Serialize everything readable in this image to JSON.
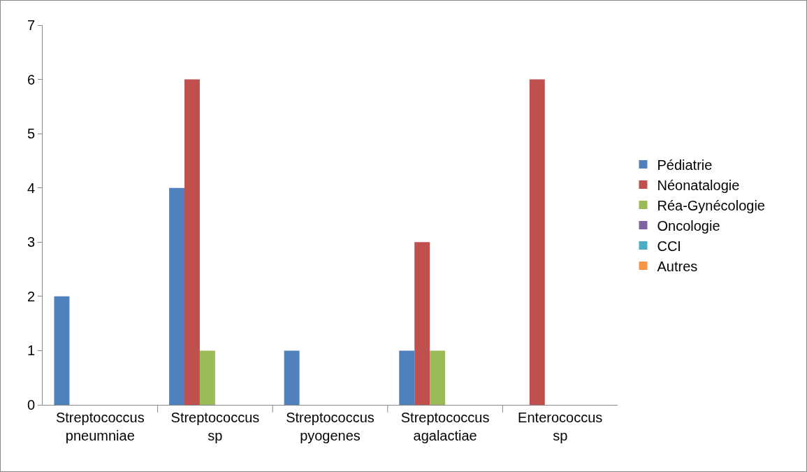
{
  "chart_data": {
    "type": "bar",
    "categories": [
      "Streptococcus pneumniae",
      "Streptococcus sp",
      "Streptococcus pyogenes",
      "Streptococcus agalactiae",
      "Enterococcus sp"
    ],
    "series": [
      {
        "name": "Pédiatrie",
        "color": "#4f81bd",
        "values": [
          2,
          4,
          1,
          1,
          0
        ]
      },
      {
        "name": "Néonatalogie",
        "color": "#c0504d",
        "values": [
          0,
          6,
          0,
          3,
          6
        ]
      },
      {
        "name": "Réa-Gynécologie",
        "color": "#9bbb59",
        "values": [
          0,
          1,
          0,
          1,
          0
        ]
      },
      {
        "name": "Oncologie",
        "color": "#8064a2",
        "values": [
          0,
          0,
          0,
          0,
          0
        ]
      },
      {
        "name": "CCI",
        "color": "#4bacc6",
        "values": [
          0,
          0,
          0,
          0,
          0
        ]
      },
      {
        "name": "Autres",
        "color": "#f79646",
        "values": [
          0,
          0,
          0,
          0,
          0
        ]
      }
    ],
    "ylim": [
      0,
      7
    ],
    "yticks": [
      0,
      1,
      2,
      3,
      4,
      5,
      6,
      7
    ],
    "grid": false,
    "legend": "right"
  }
}
